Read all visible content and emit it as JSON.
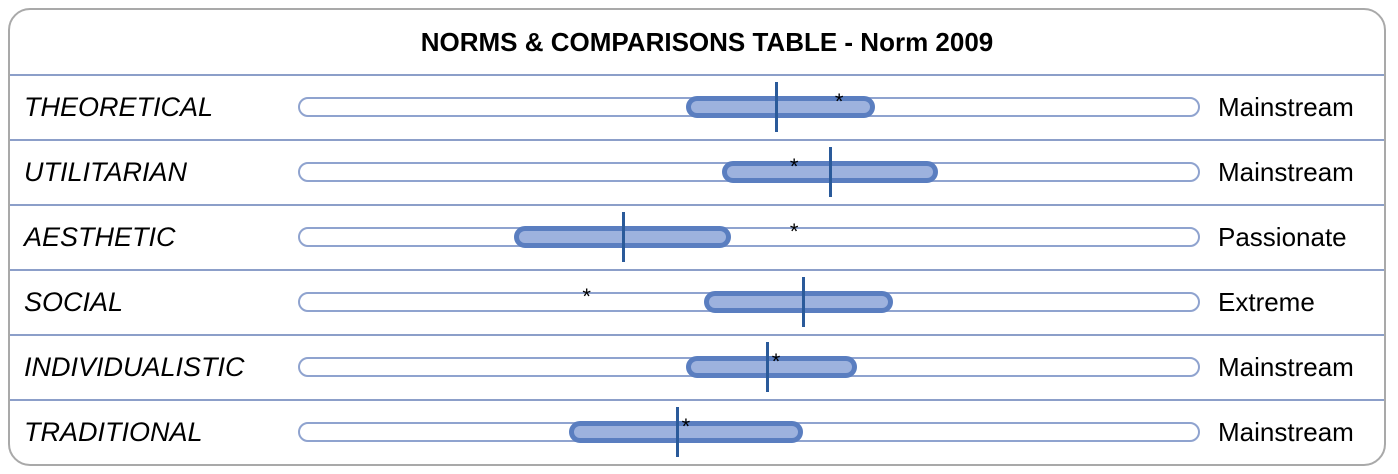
{
  "title": "NORMS & COMPARISONS TABLE - Norm 2009",
  "chart_data": {
    "type": "range",
    "title": "NORMS & COMPARISONS TABLE - Norm 2009",
    "scale": [
      0,
      100
    ],
    "rows": [
      {
        "label": "THEORETICAL",
        "band": [
          43,
          64
        ],
        "marker": 53,
        "star": 60,
        "result": "Mainstream"
      },
      {
        "label": "UTILITARIAN",
        "band": [
          47,
          71
        ],
        "marker": 59,
        "star": 55,
        "result": "Mainstream"
      },
      {
        "label": "AESTHETIC",
        "band": [
          24,
          48
        ],
        "marker": 36,
        "star": 55,
        "result": "Passionate"
      },
      {
        "label": "SOCIAL",
        "band": [
          45,
          66
        ],
        "marker": 56,
        "star": 32,
        "result": "Extreme"
      },
      {
        "label": "INDIVIDUALISTIC",
        "band": [
          43,
          62
        ],
        "marker": 52,
        "star": 53,
        "result": "Mainstream"
      },
      {
        "label": "TRADITIONAL",
        "band": [
          30,
          56
        ],
        "marker": 42,
        "star": 43,
        "result": "Mainstream"
      }
    ]
  }
}
